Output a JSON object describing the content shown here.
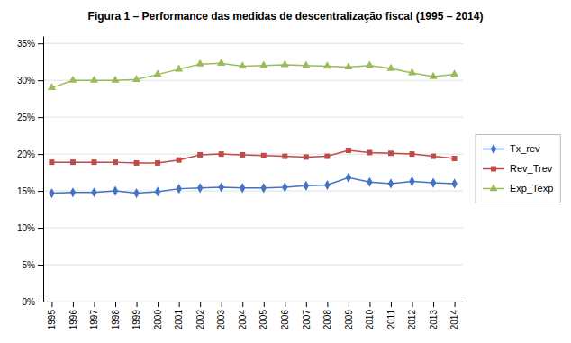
{
  "chart_data": {
    "type": "line",
    "title": "Figura 1 – Performance das medidas de descentralização fiscal (1995 – 2014)",
    "x": [
      1995,
      1996,
      1997,
      1998,
      1999,
      2000,
      2001,
      2002,
      2003,
      2004,
      2005,
      2006,
      2007,
      2008,
      2009,
      2010,
      2011,
      2012,
      2013,
      2014
    ],
    "series": [
      {
        "name": "Tx_rev",
        "color": "#4472C4",
        "marker": "diamond",
        "values": [
          0.147,
          0.148,
          0.148,
          0.15,
          0.147,
          0.149,
          0.153,
          0.154,
          0.155,
          0.154,
          0.154,
          0.155,
          0.157,
          0.158,
          0.168,
          0.162,
          0.16,
          0.163,
          0.161,
          0.16
        ]
      },
      {
        "name": "Rev_Trev",
        "color": "#BE4B48",
        "marker": "square",
        "values": [
          0.189,
          0.189,
          0.189,
          0.189,
          0.188,
          0.188,
          0.192,
          0.199,
          0.2,
          0.199,
          0.198,
          0.197,
          0.196,
          0.197,
          0.205,
          0.202,
          0.201,
          0.2,
          0.197,
          0.194
        ]
      },
      {
        "name": "Exp_Texp",
        "color": "#9BBB59",
        "marker": "triangle",
        "values": [
          0.29,
          0.3,
          0.3,
          0.3,
          0.301,
          0.308,
          0.315,
          0.322,
          0.323,
          0.319,
          0.32,
          0.321,
          0.32,
          0.319,
          0.318,
          0.32,
          0.316,
          0.31,
          0.305,
          0.308
        ]
      }
    ],
    "xlim": [
      1994.6,
      2014.4
    ],
    "xticks": [
      1995,
      1996,
      1997,
      1998,
      1999,
      2000,
      2001,
      2002,
      2003,
      2004,
      2005,
      2006,
      2007,
      2008,
      2009,
      2010,
      2011,
      2012,
      2013,
      2014
    ],
    "ylim": [
      0.0,
      0.36
    ],
    "yticks": [
      {
        "value": 0.0,
        "label": "0%"
      },
      {
        "value": 0.05,
        "label": "5%"
      },
      {
        "value": 0.1,
        "label": "10%"
      },
      {
        "value": 0.15,
        "label": "15%"
      },
      {
        "value": 0.2,
        "label": "20%"
      },
      {
        "value": 0.25,
        "label": "25%"
      },
      {
        "value": 0.3,
        "label": "30%"
      },
      {
        "value": 0.35,
        "label": "35%"
      }
    ],
    "grid": true,
    "legend": "right"
  }
}
